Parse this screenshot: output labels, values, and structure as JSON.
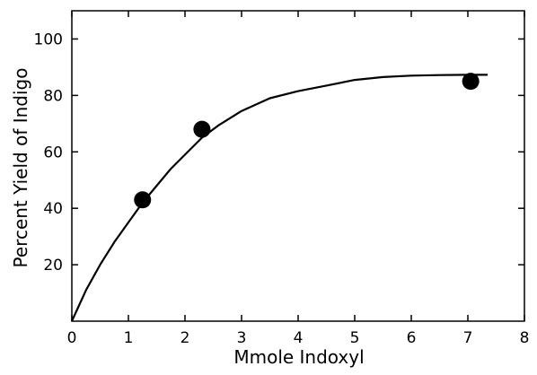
{
  "chart_data": {
    "type": "scatter",
    "title": "",
    "xlabel": "Mmole Indoxyl",
    "ylabel": "Percent Yield of Indigo",
    "xlim": [
      0,
      8
    ],
    "ylim": [
      0,
      110
    ],
    "x_ticks": [
      0,
      1,
      2,
      3,
      4,
      5,
      6,
      7,
      8
    ],
    "y_ticks": [
      20,
      40,
      60,
      80,
      100
    ],
    "grid": false,
    "series": [
      {
        "kind": "points",
        "x": [
          1.25,
          2.3,
          7.05
        ],
        "y": [
          43,
          68,
          85
        ]
      },
      {
        "kind": "fitted-curve",
        "x": [
          0,
          0.25,
          0.5,
          0.75,
          1.0,
          1.25,
          1.5,
          1.75,
          2.0,
          2.3,
          2.6,
          3.0,
          3.5,
          4.0,
          4.5,
          5.0,
          5.5,
          6.0,
          6.5,
          7.0,
          7.35
        ],
        "y": [
          0,
          11,
          20,
          28,
          35,
          42,
          48,
          54,
          59,
          65,
          69.5,
          74.5,
          79,
          81.5,
          83.5,
          85.5,
          86.5,
          87,
          87.2,
          87.3,
          87.3
        ]
      }
    ]
  }
}
